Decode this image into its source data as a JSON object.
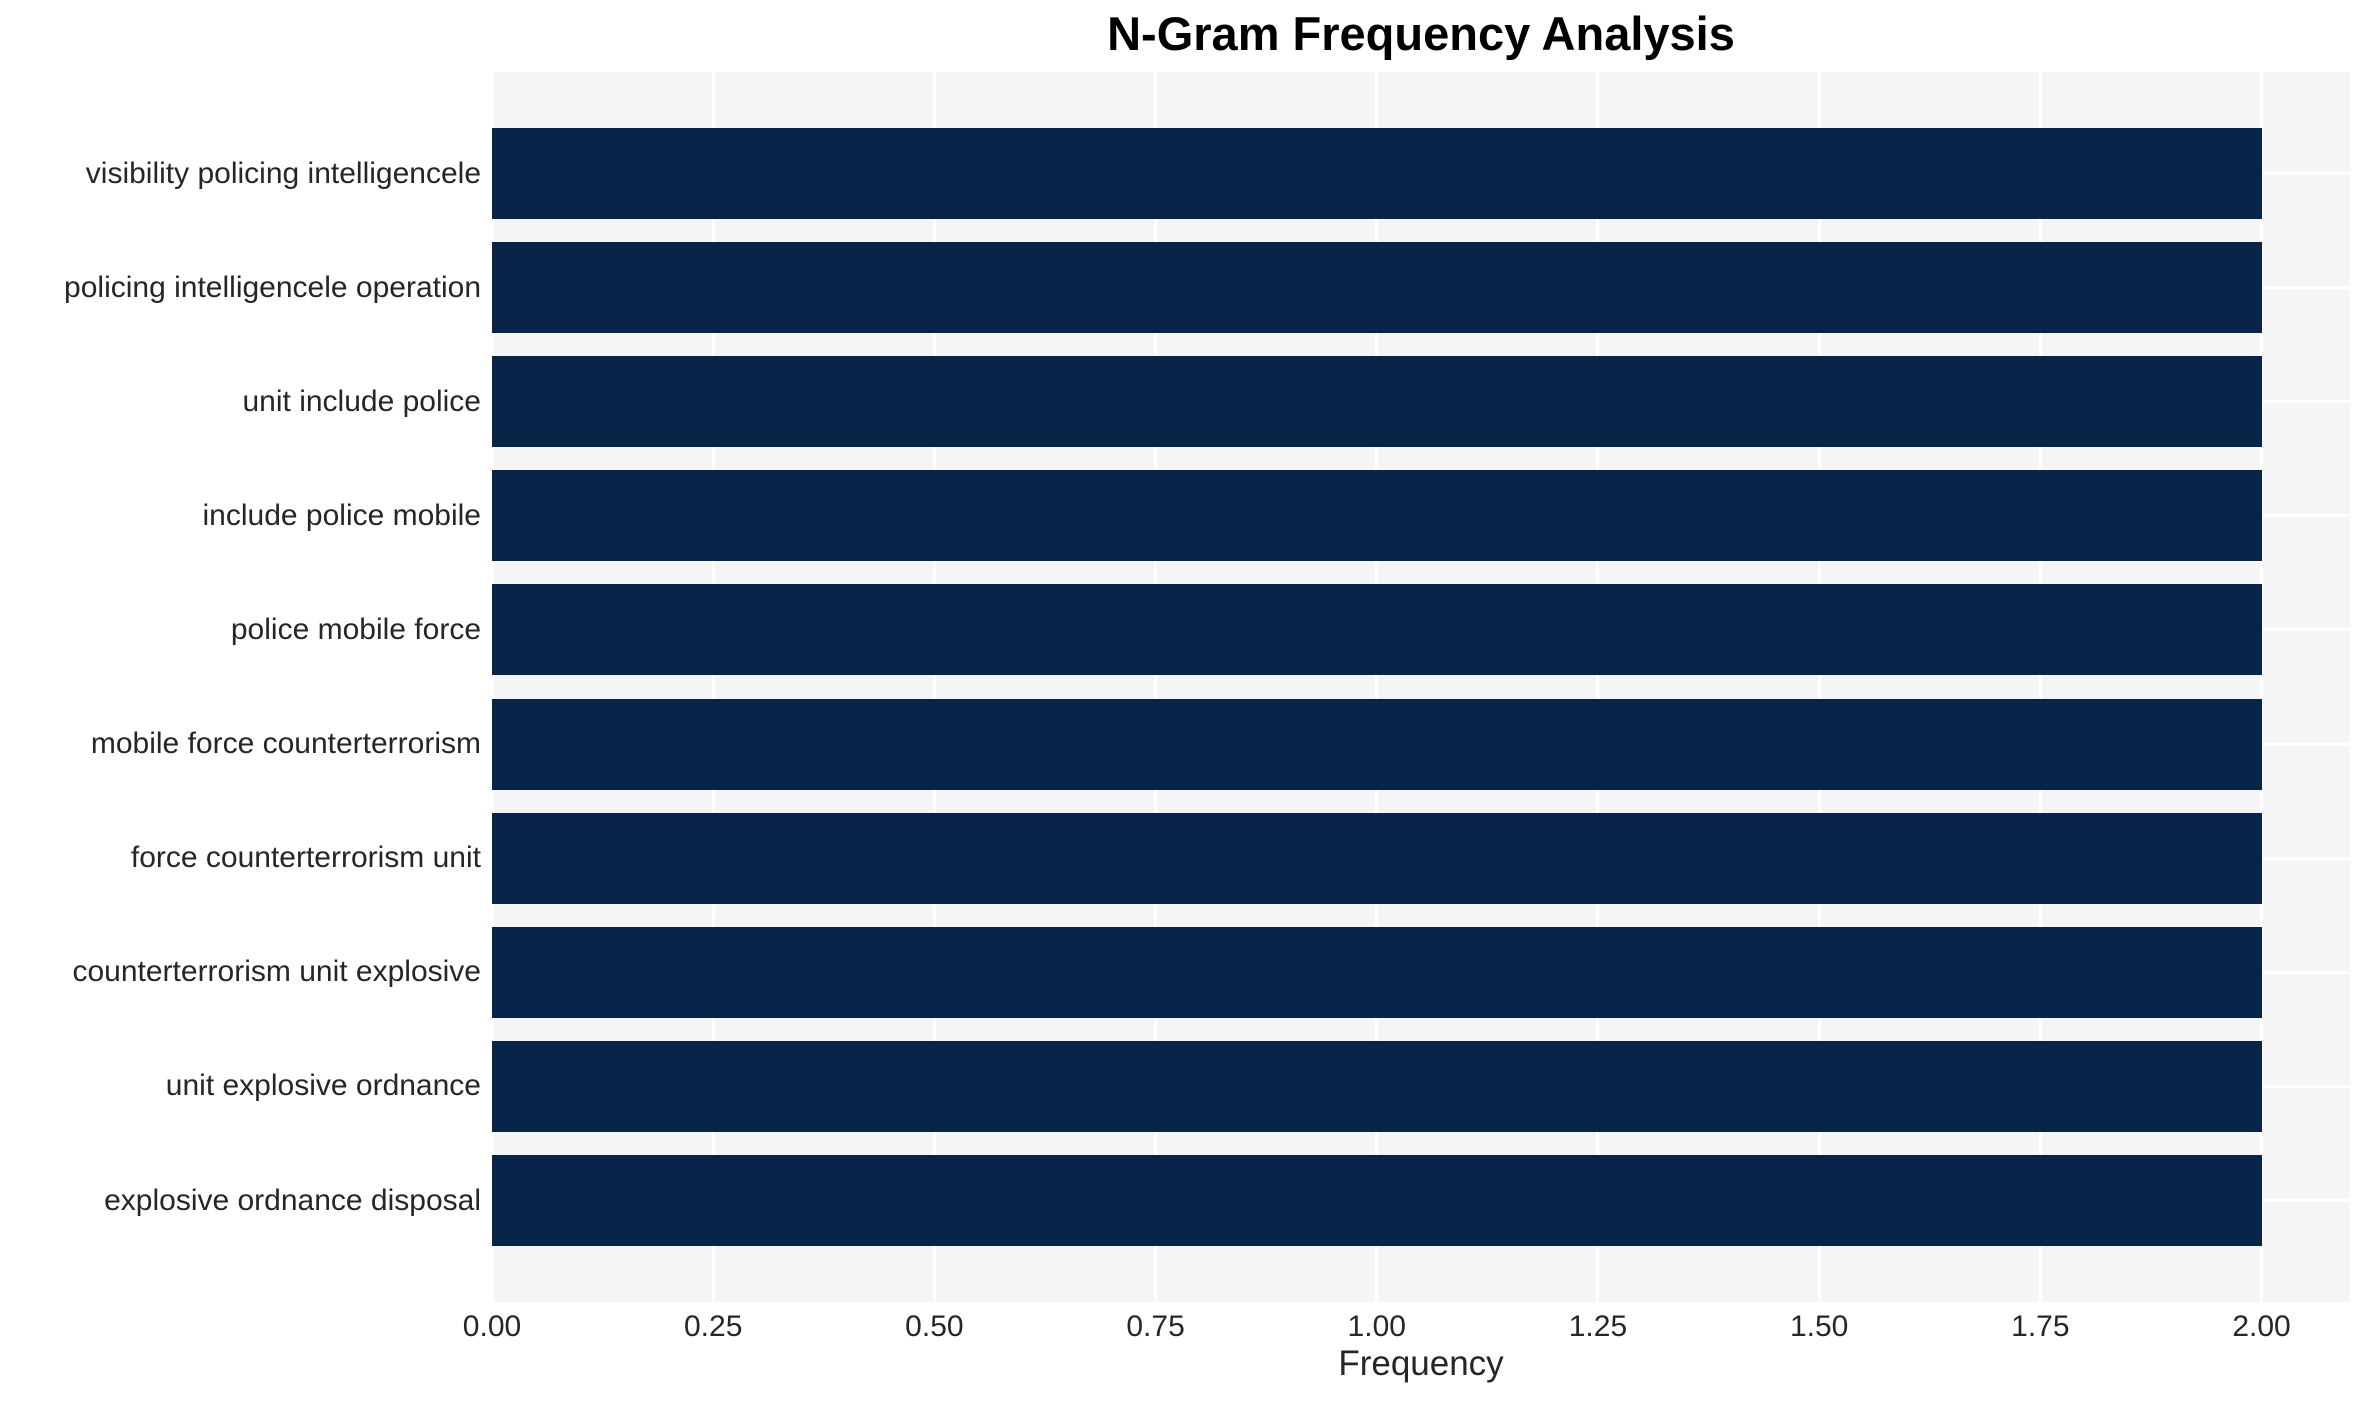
{
  "chart_data": {
    "type": "bar",
    "orientation": "horizontal",
    "title": "N-Gram Frequency Analysis",
    "xlabel": "Frequency",
    "ylabel": "",
    "categories": [
      "visibility policing intelligencele",
      "policing intelligencele operation",
      "unit include police",
      "include police mobile",
      "police mobile force",
      "mobile force counterterrorism",
      "force counterterrorism unit",
      "counterterrorism unit explosive",
      "unit explosive ordnance",
      "explosive ordnance disposal"
    ],
    "values": [
      2,
      2,
      2,
      2,
      2,
      2,
      2,
      2,
      2,
      2
    ],
    "x_tick_labels": [
      "0.00",
      "0.25",
      "0.50",
      "0.75",
      "1.00",
      "1.25",
      "1.50",
      "1.75",
      "2.00"
    ],
    "x_tick_values": [
      0,
      0.25,
      0.5,
      0.75,
      1.0,
      1.25,
      1.5,
      1.75,
      2.0
    ],
    "xlim": [
      0,
      2.1
    ],
    "grid": true,
    "legend": false,
    "colors": {
      "bar": "#082448",
      "plot_background": "#f5f5f5",
      "gridline": "#ffffff",
      "tick_text": "#262626",
      "label_text": "#262626",
      "title_text": "#000000",
      "xlabel_text": "#262626"
    }
  }
}
